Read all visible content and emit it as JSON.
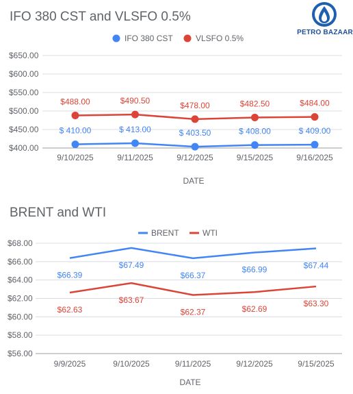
{
  "logo": {
    "text": "PETRO BAZAAR",
    "color": "#1f4e9c"
  },
  "chart_data": [
    {
      "type": "line",
      "title": "IFO 380 CST and VLSFO 0.5%",
      "xlabel": "DATE",
      "ylabel": "",
      "categories": [
        "9/10/2025",
        "9/11/2025",
        "9/12/2025",
        "9/15/2025",
        "9/16/2025"
      ],
      "yticks": [
        "$400.00",
        "$450.00",
        "$500.00",
        "$550.00",
        "$600.00",
        "$650.00"
      ],
      "ylim": [
        400,
        650
      ],
      "legend_position": "top",
      "markers": true,
      "series": [
        {
          "name": "IFO 380 CST",
          "color": "#4285f4",
          "values": [
            410.0,
            413.0,
            403.5,
            408.0,
            409.0
          ],
          "labels": [
            "$ 410.00",
            "$ 413.00",
            "$ 403.50",
            "$ 408.00",
            "$ 409.00"
          ]
        },
        {
          "name": "VLSFO 0.5%",
          "color": "#db4437",
          "values": [
            488.0,
            490.5,
            478.0,
            482.5,
            484.0
          ],
          "labels": [
            "$488.00",
            "$490.50",
            "$478.00",
            "$482.50",
            "$484.00"
          ]
        }
      ]
    },
    {
      "type": "line",
      "title": "BRENT and WTI",
      "xlabel": "DATE",
      "ylabel": "",
      "categories": [
        "9/9/2025",
        "9/10/2025",
        "9/11/2025",
        "9/12/2025",
        "9/15/2025"
      ],
      "yticks": [
        "$56.00",
        "$58.00",
        "$60.00",
        "$62.00",
        "$64.00",
        "$66.00",
        "$68.00"
      ],
      "ylim": [
        56,
        68
      ],
      "legend_position": "top",
      "markers": false,
      "series": [
        {
          "name": "BRENT",
          "color": "#4285f4",
          "values": [
            66.39,
            67.49,
            66.37,
            66.99,
            67.44
          ],
          "labels": [
            "$66.39",
            "$67.49",
            "$66.37",
            "$66.99",
            "$67.44"
          ]
        },
        {
          "name": "WTI",
          "color": "#db4437",
          "values": [
            62.63,
            63.67,
            62.37,
            62.69,
            63.3
          ],
          "labels": [
            "$62.63",
            "$63.67",
            "$62.37",
            "$62.69",
            "$63.30"
          ]
        }
      ]
    }
  ]
}
